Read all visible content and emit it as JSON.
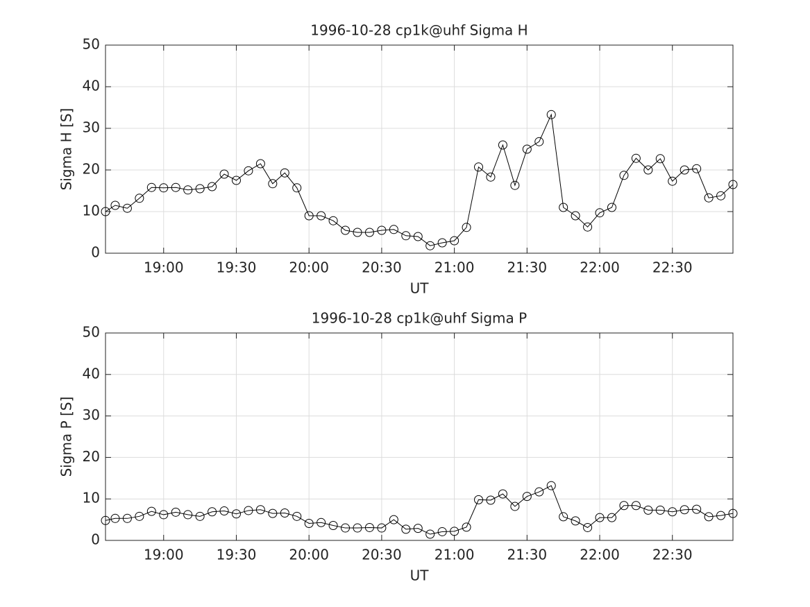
{
  "chart_data": [
    {
      "type": "line",
      "title": "1996-10-28  cp1k@uhf Sigma H",
      "xlabel": "UT",
      "ylabel": "Sigma H [S]",
      "color": "#000000",
      "grid": true,
      "x": [
        "18:36",
        "18:40",
        "18:45",
        "18:50",
        "18:55",
        "19:00",
        "19:05",
        "19:10",
        "19:15",
        "19:20",
        "19:25",
        "19:30",
        "19:35",
        "19:40",
        "19:45",
        "19:50",
        "19:55",
        "20:00",
        "20:05",
        "20:10",
        "20:15",
        "20:20",
        "20:25",
        "20:30",
        "20:35",
        "20:40",
        "20:45",
        "20:50",
        "20:55",
        "21:00",
        "21:05",
        "21:10",
        "21:15",
        "21:20",
        "21:25",
        "21:30",
        "21:35",
        "21:40",
        "21:45",
        "21:50",
        "21:55",
        "22:00",
        "22:05",
        "22:10",
        "22:15",
        "22:20",
        "22:25",
        "22:30",
        "22:35",
        "22:40",
        "22:45",
        "22:50",
        "22:55"
      ],
      "values": [
        10,
        11.5,
        10.8,
        13.2,
        15.8,
        15.7,
        15.8,
        15.2,
        15.5,
        16,
        19,
        17.5,
        19.8,
        21.5,
        16.7,
        19.3,
        15.7,
        9,
        9,
        7.8,
        5.5,
        5,
        5,
        5.5,
        5.7,
        4.2,
        4,
        1.8,
        2.5,
        3,
        6.2,
        20.7,
        18.3,
        26,
        16.3,
        25,
        26.8,
        33.3,
        11,
        9,
        6.3,
        9.7,
        11,
        18.7,
        22.8,
        20,
        22.7,
        17.3,
        20,
        20.3,
        13.3,
        13.8,
        16.5
      ],
      "xlim": [
        "18:36",
        "22:55"
      ],
      "xticks": [
        "19:00",
        "19:30",
        "20:00",
        "20:30",
        "21:00",
        "21:30",
        "22:00",
        "22:30"
      ],
      "ylim": [
        0,
        50
      ],
      "yticks": [
        0,
        10,
        20,
        30,
        40,
        50
      ]
    },
    {
      "type": "line",
      "title": "1996-10-28  cp1k@uhf Sigma P",
      "xlabel": "UT",
      "ylabel": "Sigma P [S]",
      "color": "#000000",
      "grid": true,
      "x": [
        "18:36",
        "18:40",
        "18:45",
        "18:50",
        "18:55",
        "19:00",
        "19:05",
        "19:10",
        "19:15",
        "19:20",
        "19:25",
        "19:30",
        "19:35",
        "19:40",
        "19:45",
        "19:50",
        "19:55",
        "20:00",
        "20:05",
        "20:10",
        "20:15",
        "20:20",
        "20:25",
        "20:30",
        "20:35",
        "20:40",
        "20:45",
        "20:50",
        "20:55",
        "21:00",
        "21:05",
        "21:10",
        "21:15",
        "21:20",
        "21:25",
        "21:30",
        "21:35",
        "21:40",
        "21:45",
        "21:50",
        "21:55",
        "22:00",
        "22:05",
        "22:10",
        "22:15",
        "22:20",
        "22:25",
        "22:30",
        "22:35",
        "22:40",
        "22:45",
        "22:50",
        "22:55"
      ],
      "values": [
        4.8,
        5.3,
        5.3,
        5.8,
        7,
        6.2,
        6.8,
        6.2,
        5.8,
        6.9,
        7.1,
        6.4,
        7.2,
        7.4,
        6.5,
        6.6,
        5.8,
        4.1,
        4.3,
        3.6,
        3,
        3,
        3.1,
        3,
        5,
        2.7,
        2.9,
        1.5,
        2.1,
        2.2,
        3.2,
        9.8,
        9.7,
        11.2,
        8.2,
        10.6,
        11.7,
        13.2,
        5.7,
        4.7,
        3.1,
        5.5,
        5.5,
        8.4,
        8.4,
        7.3,
        7.3,
        6.9,
        7.4,
        7.5,
        5.7,
        6,
        6.5
      ],
      "xlim": [
        "18:36",
        "22:55"
      ],
      "xticks": [
        "19:00",
        "19:30",
        "20:00",
        "20:30",
        "21:00",
        "21:30",
        "22:00",
        "22:30"
      ],
      "ylim": [
        0,
        50
      ],
      "yticks": [
        0,
        10,
        20,
        30,
        40,
        50
      ]
    }
  ]
}
